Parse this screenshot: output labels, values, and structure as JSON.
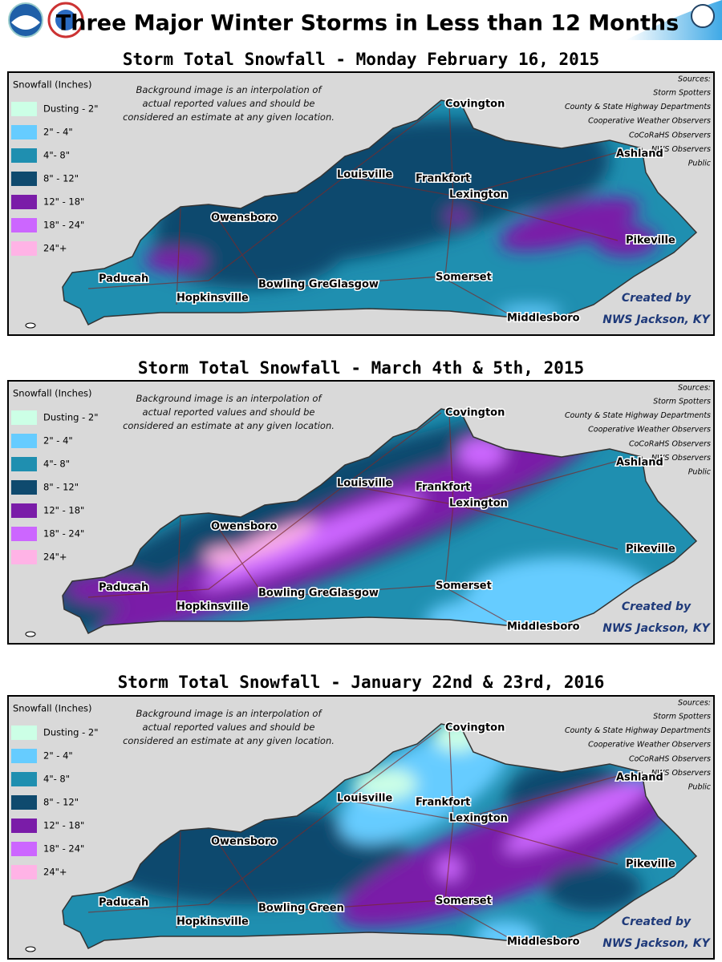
{
  "header": {
    "title": "Three Major Winter Storms in Less than 12 Months"
  },
  "maps": [
    {
      "title": "Storm Total Snowfall - Monday February 16, 2015",
      "legend_title": "Snowfall (Inches)",
      "legend": [
        {
          "label": "Dusting - 2\"",
          "color": "#ccffe6"
        },
        {
          "label": "2\" - 4\"",
          "color": "#66ccff"
        },
        {
          "label": "4\"- 8\"",
          "color": "#1f8fb0"
        },
        {
          "label": "8\" - 12\"",
          "color": "#0f4a6e"
        },
        {
          "label": "12\" - 18\"",
          "color": "#7a1ca8"
        },
        {
          "label": "18\" - 24\"",
          "color": "#cc66ff"
        },
        {
          "label": "24\"+",
          "color": "#ffb3e6"
        }
      ],
      "note": "Background image is an interpolation of actual reported values and should be considered an estimate at any given location.",
      "sources_title": "Sources:",
      "sources": [
        "Storm Spotters",
        "County & State Highway Departments",
        "Cooperative Weather Observers",
        "CoCoRaHS Observers",
        "NWS Observers",
        "Public"
      ],
      "cities": [
        "Covington",
        "Ashland",
        "Louisville",
        "Frankfort",
        "Lexington",
        "Owensboro",
        "Pikeville",
        "Paducah",
        "Hopkinsville",
        "Bowling Green",
        "Somerset",
        "Middlesboro",
        "Glasgow"
      ],
      "credit": [
        "Created by",
        "NWS Jackson, KY"
      ]
    },
    {
      "title": "Storm Total Snowfall - March 4th & 5th, 2015",
      "legend_title": "Snowfall (Inches)",
      "legend": [
        {
          "label": "Dusting - 2\"",
          "color": "#ccffe6"
        },
        {
          "label": "2\" - 4\"",
          "color": "#66ccff"
        },
        {
          "label": "4\"- 8\"",
          "color": "#1f8fb0"
        },
        {
          "label": "8\" - 12\"",
          "color": "#0f4a6e"
        },
        {
          "label": "12\" - 18\"",
          "color": "#7a1ca8"
        },
        {
          "label": "18\" - 24\"",
          "color": "#cc66ff"
        },
        {
          "label": "24\"+",
          "color": "#ffb3e6"
        }
      ],
      "note": "Background image is an interpolation of actual reported values and should be considered an estimate at any given location.",
      "sources_title": "Sources:",
      "sources": [
        "Storm Spotters",
        "County & State Highway Departments",
        "Cooperative Weather Observers",
        "CoCoRaHS Observers",
        "NWS Observers",
        "Public"
      ],
      "cities": [
        "Covington",
        "Ashland",
        "Louisville",
        "Frankfort",
        "Lexington",
        "Owensboro",
        "Pikeville",
        "Paducah",
        "Hopkinsville",
        "Bowling Green",
        "Somerset",
        "Middlesboro",
        "Glasgow"
      ],
      "credit": [
        "Created by",
        "NWS Jackson, KY"
      ]
    },
    {
      "title": "Storm Total Snowfall - January 22nd & 23rd, 2016",
      "legend_title": "Snowfall (Inches)",
      "legend": [
        {
          "label": "Dusting - 2\"",
          "color": "#ccffe6"
        },
        {
          "label": "2\" - 4\"",
          "color": "#66ccff"
        },
        {
          "label": "4\"- 8\"",
          "color": "#1f8fb0"
        },
        {
          "label": "8\" - 12\"",
          "color": "#0f4a6e"
        },
        {
          "label": "12\" - 18\"",
          "color": "#7a1ca8"
        },
        {
          "label": "18\" - 24\"",
          "color": "#cc66ff"
        },
        {
          "label": "24\"+",
          "color": "#ffb3e6"
        }
      ],
      "note": "Background image is an interpolation of actual reported values and should be considered an estimate at any given location.",
      "sources_title": "Sources:",
      "sources": [
        "Storm Spotters",
        "County & State Highway Departments",
        "Cooperative Weather Observers",
        "CoCoRaHS Observers",
        "NWS Observers",
        "Public"
      ],
      "cities": [
        "Covington",
        "Ashland",
        "Louisville",
        "Frankfort",
        "Lexington",
        "Owensboro",
        "Pikeville",
        "Paducah",
        "Hopkinsville",
        "Bowling Green",
        "Somerset",
        "Middlesboro"
      ],
      "credit": [
        "Created by",
        "NWS Jackson, KY"
      ]
    }
  ]
}
